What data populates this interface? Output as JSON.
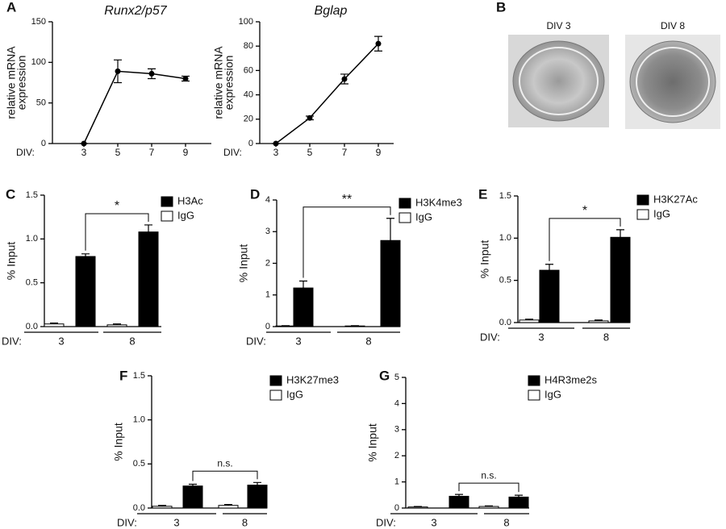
{
  "chart_data": [
    {
      "panel": "A",
      "type": "line",
      "title": "Runx2/p57",
      "y_label": [
        "relative mRNA",
        "expression"
      ],
      "x_label": "DIV:",
      "categories": [
        "3",
        "5",
        "7",
        "9"
      ],
      "series": [
        {
          "color": "#000000",
          "values": [
            0,
            89,
            86,
            80
          ],
          "errors": [
            0,
            14,
            6,
            3
          ]
        }
      ],
      "ylim": [
        0,
        150
      ],
      "yticks": [
        0,
        50,
        100,
        150
      ]
    },
    {
      "type": "line",
      "title": "Bglap",
      "y_label": [
        "relative mRNA",
        "expression"
      ],
      "x_label": "DIV:",
      "categories": [
        "3",
        "5",
        "7",
        "9"
      ],
      "series": [
        {
          "color": "#000000",
          "values": [
            0,
            21,
            53,
            82
          ],
          "errors": [
            0,
            1.5,
            4,
            6
          ]
        }
      ],
      "ylim": [
        0,
        100
      ],
      "yticks": [
        0,
        20,
        40,
        60,
        80,
        100
      ]
    },
    {
      "panel": "B",
      "type": "image",
      "images": [
        {
          "label": "DIV 3"
        },
        {
          "label": "DIV 8"
        }
      ]
    },
    {
      "panel": "C",
      "type": "bar",
      "y_label": "% Input",
      "x_label": "DIV:",
      "categories": [
        "3",
        "8"
      ],
      "series": [
        {
          "name": "H3Ac",
          "color": "#000000",
          "values": [
            0.8,
            1.08
          ],
          "errors": [
            0.03,
            0.08
          ]
        },
        {
          "name": "IgG",
          "color": "#ffffff",
          "values": [
            0.03,
            0.02
          ],
          "errors": [
            0.01,
            0.01
          ]
        }
      ],
      "ylim": [
        0,
        1.5
      ],
      "yticks": [
        {
          "value": 0,
          "label": "0.0"
        },
        0.5,
        {
          "value": 1,
          "label": "1.0"
        },
        1.5
      ],
      "significance": "*"
    },
    {
      "panel": "D",
      "type": "bar",
      "y_label": "% Input",
      "x_label": "DIV:",
      "categories": [
        "3",
        "8"
      ],
      "series": [
        {
          "name": "H3K4me3",
          "color": "#000000",
          "values": [
            1.22,
            2.72
          ],
          "errors": [
            0.22,
            0.7
          ]
        },
        {
          "name": "IgG",
          "color": "#ffffff",
          "values": [
            0.02,
            0.02
          ],
          "errors": [
            0.01,
            0.01
          ]
        }
      ],
      "ylim": [
        0,
        4
      ],
      "yticks": [
        0,
        1,
        2,
        3,
        4
      ],
      "significance": "**"
    },
    {
      "panel": "E",
      "type": "bar",
      "y_label": "% Input",
      "x_label": "DIV:",
      "categories": [
        "3",
        "8"
      ],
      "series": [
        {
          "name": "H3K27Ac",
          "color": "#000000",
          "values": [
            0.62,
            1.01
          ],
          "errors": [
            0.07,
            0.09
          ]
        },
        {
          "name": "IgG",
          "color": "#ffffff",
          "values": [
            0.03,
            0.02
          ],
          "errors": [
            0.01,
            0.01
          ]
        }
      ],
      "ylim": [
        0,
        1.5
      ],
      "yticks": [
        {
          "value": 0,
          "label": "0.0"
        },
        0.5,
        {
          "value": 1,
          "label": "1.0"
        },
        1.5
      ],
      "significance": "*"
    },
    {
      "panel": "F",
      "type": "bar",
      "y_label": "% Input",
      "x_label": "DIV:",
      "categories": [
        "3",
        "8"
      ],
      "series": [
        {
          "name": "H3K27me3",
          "color": "#000000",
          "values": [
            0.25,
            0.26
          ],
          "errors": [
            0.02,
            0.03
          ]
        },
        {
          "name": "IgG",
          "color": "#ffffff",
          "values": [
            0.02,
            0.03
          ],
          "errors": [
            0.01,
            0.01
          ]
        }
      ],
      "ylim": [
        0,
        1.5
      ],
      "yticks": [
        {
          "value": 0,
          "label": "0.0"
        },
        0.5,
        {
          "value": 1,
          "label": "1.0"
        },
        1.5
      ],
      "significance": "n.s."
    },
    {
      "panel": "G",
      "type": "bar",
      "y_label": "% Input",
      "x_label": "DIV:",
      "categories": [
        "3",
        "8"
      ],
      "series": [
        {
          "name": "H4R3me2s",
          "color": "#000000",
          "values": [
            0.45,
            0.42
          ],
          "errors": [
            0.07,
            0.07
          ]
        },
        {
          "name": "IgG",
          "color": "#ffffff",
          "values": [
            0.04,
            0.06
          ],
          "errors": [
            0.02,
            0.02
          ]
        }
      ],
      "ylim": [
        0,
        5
      ],
      "yticks": [
        0,
        1,
        2,
        3,
        4,
        5
      ],
      "significance": "n.s."
    }
  ]
}
